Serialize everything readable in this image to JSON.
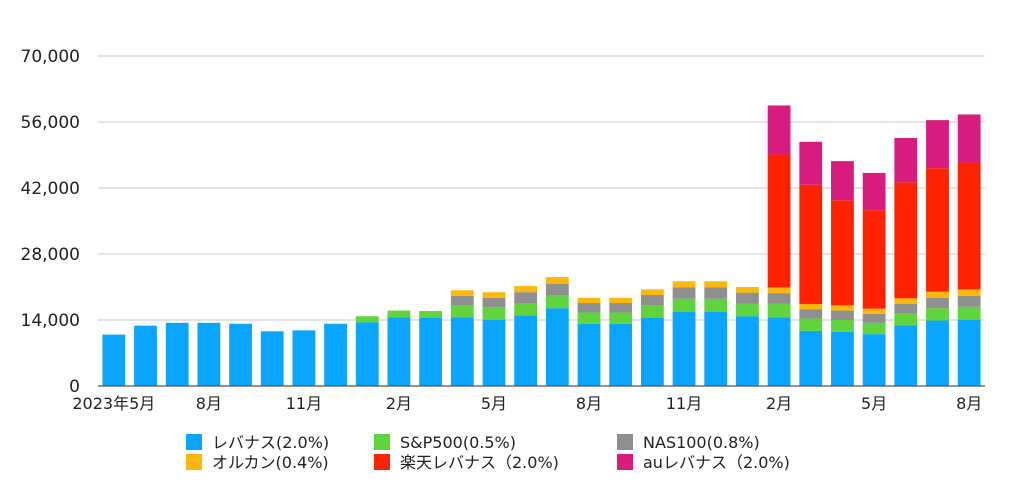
{
  "chart_data": {
    "type": "bar",
    "stacked": true,
    "title": "",
    "xlabel": "",
    "ylabel": "",
    "ylim": [
      0,
      70000
    ],
    "yticks": [
      0,
      14000,
      28000,
      42000,
      56000,
      70000
    ],
    "ytick_labels": [
      "0",
      "14,000",
      "28,000",
      "42,000",
      "56,000",
      "70,000"
    ],
    "grid": true,
    "legend_position": "bottom",
    "categories": [
      "2023-05",
      "2023-06",
      "2023-07",
      "2023-08",
      "2023-09",
      "2023-10",
      "2023-11",
      "2023-12",
      "2024-01",
      "2024-02",
      "2024-03",
      "2024-04",
      "2024-05",
      "2024-06",
      "2024-07",
      "2024-08",
      "2024-09",
      "2024-10",
      "2024-11",
      "2024-12",
      "2025-01",
      "2025-02",
      "2025-03",
      "2025-04",
      "2025-05",
      "2025-06",
      "2025-07",
      "2025-08"
    ],
    "xtick_labels": [
      {
        "index": 0,
        "label": "2023年5月"
      },
      {
        "index": 3,
        "label": "8月"
      },
      {
        "index": 6,
        "label": "11月"
      },
      {
        "index": 9,
        "label": "2月"
      },
      {
        "index": 12,
        "label": "5月"
      },
      {
        "index": 15,
        "label": "8月"
      },
      {
        "index": 18,
        "label": "11月"
      },
      {
        "index": 21,
        "label": "2月"
      },
      {
        "index": 24,
        "label": "5月"
      },
      {
        "index": 27,
        "label": "8月"
      }
    ],
    "series": [
      {
        "name": "レバナス(2.0%)",
        "color": "#0aa5ff",
        "values": [
          10900,
          12800,
          13400,
          13400,
          13200,
          11600,
          11800,
          13200,
          13500,
          14600,
          14500,
          14600,
          14000,
          15000,
          16500,
          13200,
          13200,
          14500,
          15700,
          15700,
          14800,
          14600,
          11700,
          11500,
          11000,
          12900,
          13900,
          14000
        ]
      },
      {
        "name": "S&P500(0.5%)",
        "color": "#5fd43c",
        "values": [
          0,
          0,
          0,
          0,
          0,
          0,
          0,
          0,
          1300,
          1400,
          1400,
          2500,
          2700,
          2600,
          2800,
          2400,
          2400,
          2600,
          2800,
          2800,
          2700,
          2900,
          2600,
          2500,
          2400,
          2500,
          2600,
          2800
        ]
      },
      {
        "name": "NAS100(0.8%)",
        "color": "#8f8f8f",
        "values": [
          0,
          0,
          0,
          0,
          0,
          0,
          0,
          0,
          0,
          0,
          0,
          2000,
          2000,
          2300,
          2400,
          2000,
          2000,
          2200,
          2400,
          2400,
          2300,
          2200,
          2000,
          2000,
          1900,
          2000,
          2200,
          2300
        ]
      },
      {
        "name": "オルカン(0.4%)",
        "color": "#fbb80a",
        "values": [
          0,
          0,
          0,
          0,
          0,
          0,
          0,
          0,
          0,
          0,
          0,
          1200,
          1200,
          1300,
          1400,
          1100,
          1100,
          1200,
          1300,
          1300,
          1200,
          1200,
          1100,
          1100,
          1100,
          1200,
          1300,
          1400
        ]
      },
      {
        "name": "楽天レバナス（2.0%)",
        "color": "#ff2200",
        "values": [
          0,
          0,
          0,
          0,
          0,
          0,
          0,
          0,
          0,
          0,
          0,
          0,
          0,
          0,
          0,
          0,
          0,
          0,
          0,
          0,
          0,
          28200,
          25300,
          22300,
          20900,
          24600,
          26200,
          26900
        ]
      },
      {
        "name": "auレバナス（2.0%)",
        "color": "#d81b7f",
        "values": [
          0,
          0,
          0,
          0,
          0,
          0,
          0,
          0,
          0,
          0,
          0,
          0,
          0,
          0,
          0,
          0,
          0,
          0,
          0,
          0,
          0,
          10400,
          9100,
          8300,
          7900,
          9400,
          10200,
          10200
        ]
      }
    ]
  }
}
